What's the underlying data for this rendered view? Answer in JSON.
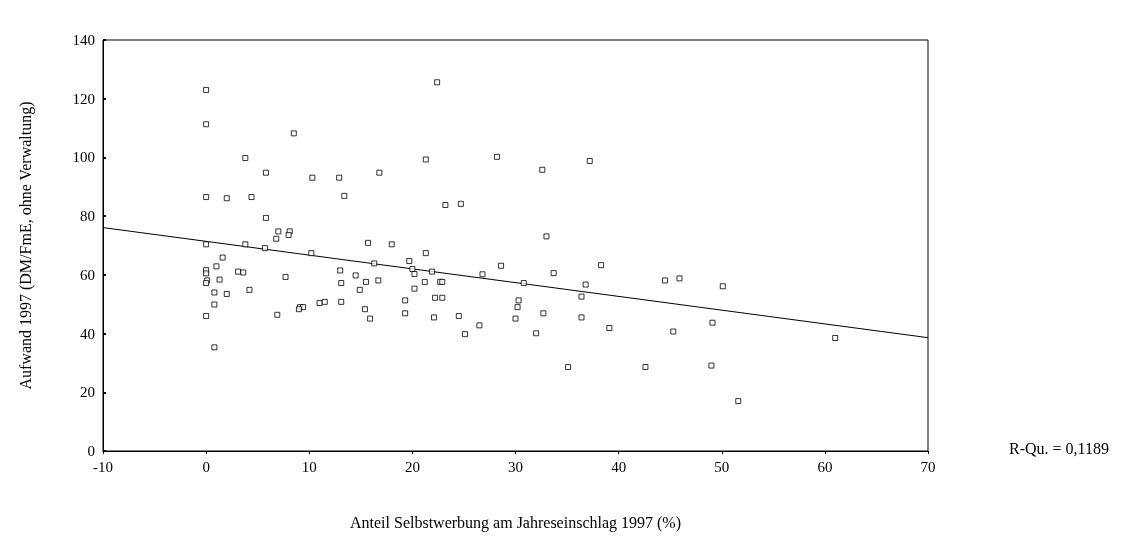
{
  "chart_data": {
    "type": "scatter",
    "xlabel": "Anteil Selbstwerbung am Jahreseinschlag 1997 (%)",
    "ylabel": "Aufwand 1997 (DM/FmE, ohne Verwaltung)",
    "annotations": [
      "R-Qu. = 0,1189"
    ],
    "xlim": [
      -10,
      70
    ],
    "xticks": [
      -10,
      0,
      10,
      20,
      30,
      40,
      50,
      60,
      70
    ],
    "ylim": [
      0,
      140
    ],
    "yticks": [
      0,
      20,
      40,
      60,
      80,
      100,
      120,
      140
    ],
    "grid": false,
    "series": [
      {
        "marker": "square",
        "color": "#000000",
        "x": [
          0,
          22.4,
          0,
          8.5,
          3.8,
          21.3,
          5.8,
          10.3,
          12.9,
          16.8,
          0,
          2,
          4.4,
          13.4,
          5.8,
          7,
          8.1,
          6.8,
          8,
          0,
          3.8,
          5.7,
          10.2,
          15.7,
          18,
          21.3,
          1.6,
          16.3,
          19.7,
          20,
          21.9,
          1,
          0,
          0,
          3.1,
          3.6,
          13,
          14.5,
          7.7,
          20.2,
          0.1,
          1.3,
          0,
          13.1,
          15.5,
          16.7,
          21.2,
          22.7,
          0.8,
          2,
          4.2,
          14.9,
          20.2,
          22.2,
          22.9,
          19.3,
          0.8,
          9.1,
          9.4,
          9,
          11,
          11.5,
          13.1,
          15.4,
          0,
          6.9,
          15.9,
          19.3,
          22.1,
          0.8,
          28.2,
          37.2,
          32.6,
          23.2,
          24.7,
          33,
          28.6,
          38.3,
          26.8,
          33.7,
          22.9,
          30.8,
          36.8,
          44.5,
          45.9,
          30.3,
          30.2,
          36.4,
          24.5,
          26.5,
          25.1,
          30,
          32.7,
          32,
          36.4,
          39.1,
          45.3,
          35.1,
          42.6,
          50.1,
          49.1,
          61,
          49,
          51.6
        ],
        "values": [
          123,
          125.6,
          111.3,
          108.2,
          99.8,
          99.3,
          94.8,
          93.1,
          93.1,
          94.8,
          86.5,
          86.1,
          86.5,
          86.9,
          79.4,
          74.8,
          74.8,
          72.3,
          73.6,
          70.4,
          70.4,
          69.1,
          67.4,
          70.9,
          70.4,
          67.4,
          65.9,
          63.9,
          64.7,
          62,
          61.1,
          62.9,
          61.6,
          60.5,
          61.1,
          60.8,
          61.5,
          59.8,
          59.3,
          60.3,
          58.1,
          58.4,
          57.2,
          57.2,
          57.6,
          58.1,
          57.6,
          57.6,
          54,
          53.5,
          54.9,
          54.9,
          55.3,
          52.2,
          52.2,
          51.3,
          49.9,
          49,
          49,
          48.3,
          50.4,
          50.8,
          50.8,
          48.3,
          46,
          46.4,
          45.1,
          46.9,
          45.5,
          35.3,
          100.2,
          98.8,
          95.8,
          83.8,
          84.2,
          73.1,
          63.1,
          63.3,
          60.2,
          60.6,
          57.6,
          57.2,
          56.7,
          58.1,
          58.8,
          51.3,
          49,
          52.6,
          46,
          42.8,
          39.8,
          45.1,
          46.9,
          40.1,
          45.5,
          41.9,
          40.7,
          28.6,
          28.6,
          56.1,
          43.7,
          38.5,
          29.1,
          17
        ]
      },
      {
        "type": "line",
        "marker": "none",
        "color": "#000000",
        "x": [
          -10,
          70
        ],
        "values": [
          76.1,
          38.6
        ]
      }
    ]
  }
}
